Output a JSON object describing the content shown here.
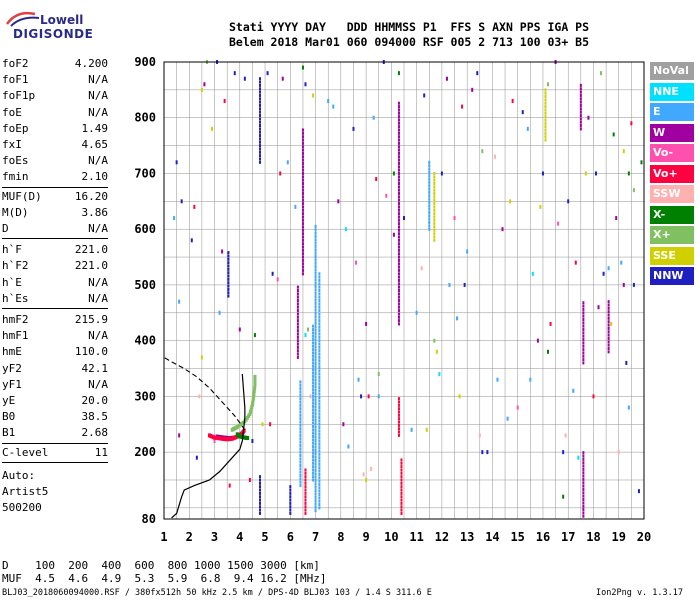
{
  "logo": {
    "line1": "Lowell",
    "line2": "DIGISONDE"
  },
  "header": {
    "line1": "Stati YYYY DAY   DDD HHMMSS P1  FFS S AXN PPS IGA PS",
    "line2": "Belem 2018 Mar01 060 094000 RSF 005 2 713 100 03+ B5"
  },
  "params_group1": [
    {
      "label": "foF2",
      "value": "4.200"
    },
    {
      "label": "foF1",
      "value": "N/A"
    },
    {
      "label": "foF1p",
      "value": "N/A"
    },
    {
      "label": "foE",
      "value": "N/A"
    },
    {
      "label": "foEp",
      "value": "1.49"
    },
    {
      "label": "fxI",
      "value": "4.65"
    },
    {
      "label": "foEs",
      "value": "N/A"
    },
    {
      "label": "fmin",
      "value": "2.10"
    }
  ],
  "params_group2": [
    {
      "label": "MUF(D)",
      "value": "16.20"
    },
    {
      "label": "M(D)",
      "value": "3.86"
    },
    {
      "label": "D",
      "value": "N/A"
    }
  ],
  "params_group3": [
    {
      "label": "h`F",
      "value": "221.0"
    },
    {
      "label": "h`F2",
      "value": "221.0"
    },
    {
      "label": "h`E",
      "value": "N/A"
    },
    {
      "label": "h`Es",
      "value": "N/A"
    }
  ],
  "params_group4": [
    {
      "label": "hmF2",
      "value": "215.9"
    },
    {
      "label": "hmF1",
      "value": "N/A"
    },
    {
      "label": "hmE",
      "value": "110.0"
    },
    {
      "label": "yF2",
      "value": "42.1"
    },
    {
      "label": "yF1",
      "value": "N/A"
    },
    {
      "label": "yE",
      "value": "20.0"
    },
    {
      "label": "B0",
      "value": "38.5"
    },
    {
      "label": "B1",
      "value": "2.68"
    }
  ],
  "c_level": {
    "label": "C-level",
    "value": "11"
  },
  "auto": {
    "line1": "Auto:",
    "line2": "Artist5",
    "line3": "500200"
  },
  "legend": [
    {
      "label": "NoVal",
      "bg": "#a0a0a0",
      "fg": "#ffffff"
    },
    {
      "label": "NNE",
      "bg": "#00e0ff",
      "fg": "#ffffff"
    },
    {
      "label": "E",
      "bg": "#40a8ff",
      "fg": "#ffffff"
    },
    {
      "label": "W",
      "bg": "#a000a0",
      "fg": "#ffffff"
    },
    {
      "label": "Vo-",
      "bg": "#ff50b0",
      "fg": "#ffffff"
    },
    {
      "label": "Vo+",
      "bg": "#ff0040",
      "fg": "#ffffff"
    },
    {
      "label": "SSW",
      "bg": "#ffb0b0",
      "fg": "#ffffff"
    },
    {
      "label": "X-",
      "bg": "#008000",
      "fg": "#ffffff"
    },
    {
      "label": "X+",
      "bg": "#80c060",
      "fg": "#ffffff"
    },
    {
      "label": "SSE",
      "bg": "#d0d000",
      "fg": "#ffffff"
    },
    {
      "label": "NNW",
      "bg": "#2020c0",
      "fg": "#ffffff"
    }
  ],
  "bottom": {
    "d_row": "D    100  200  400  600  800 1000 1500 3000 [km]",
    "muf_row": "MUF  4.5  4.6  4.9  5.3  5.9  6.8  9.4 16.2 [MHz]"
  },
  "footer": {
    "left": "BLJ03_2018060094000.RSF / 380fx512h 50 kHz 2.5 km / DPS-4D BLJ03 103 / 1.4 S 311.6 E",
    "right": "Ion2Png v. 1.3.17"
  },
  "chart_data": {
    "type": "scatter",
    "xlim": [
      1,
      20
    ],
    "ylim": [
      80,
      900
    ],
    "x_ticks": [
      1,
      2,
      3,
      4,
      5,
      6,
      7,
      8,
      9,
      10,
      11,
      12,
      13,
      14,
      15,
      16,
      17,
      18,
      19,
      20
    ],
    "y_ticks": [
      80,
      200,
      300,
      400,
      500,
      600,
      700,
      800,
      900
    ],
    "grid": true,
    "colors": {
      "profile": "#000000",
      "extrap": "#000000",
      "frame": "#000000",
      "grid": "#909090"
    },
    "profile": [
      [
        1.3,
        82
      ],
      [
        1.5,
        90
      ],
      [
        1.6,
        105
      ],
      [
        1.7,
        120
      ],
      [
        1.8,
        132
      ],
      [
        2.2,
        140
      ],
      [
        2.8,
        150
      ],
      [
        3.2,
        165
      ],
      [
        3.7,
        190
      ],
      [
        4.0,
        205
      ],
      [
        4.1,
        220
      ],
      [
        4.15,
        240
      ],
      [
        4.2,
        262
      ],
      [
        4.2,
        280
      ],
      [
        4.15,
        310
      ],
      [
        4.1,
        340
      ]
    ],
    "extrapolation": [
      [
        4.2,
        240
      ],
      [
        3.8,
        265
      ],
      [
        3.3,
        290
      ],
      [
        2.8,
        315
      ],
      [
        2.3,
        335
      ],
      [
        1.8,
        350
      ],
      [
        1.3,
        362
      ],
      [
        1.0,
        370
      ]
    ],
    "traces": [
      {
        "name": "W",
        "color": "#a000a0",
        "points": [
          [
            3.1,
            228
          ],
          [
            3.4,
            226
          ],
          [
            3.6,
            225
          ],
          [
            3.8,
            226
          ],
          [
            4.0,
            230
          ],
          [
            4.15,
            236
          ]
        ]
      },
      {
        "name": "Vo+",
        "color": "#ff0040",
        "points": [
          [
            2.8,
            230
          ],
          [
            3.0,
            226
          ],
          [
            3.3,
            224
          ],
          [
            3.5,
            223
          ],
          [
            3.7,
            224
          ],
          [
            3.9,
            228
          ],
          [
            4.1,
            234
          ],
          [
            4.2,
            240
          ]
        ]
      },
      {
        "name": "X+",
        "color": "#80c060",
        "points": [
          [
            3.7,
            240
          ],
          [
            3.9,
            245
          ],
          [
            4.2,
            255
          ],
          [
            4.4,
            268
          ],
          [
            4.5,
            285
          ],
          [
            4.55,
            300
          ],
          [
            4.6,
            320
          ],
          [
            4.6,
            340
          ]
        ]
      },
      {
        "name": "X-",
        "color": "#008000",
        "points": [
          [
            3.9,
            232
          ],
          [
            4.0,
            228
          ],
          [
            4.2,
            226
          ],
          [
            4.35,
            225
          ]
        ]
      }
    ],
    "columns": [
      {
        "name": "E",
        "color": "#40a8ff",
        "x": 7.0,
        "y0": 95,
        "y1": 610
      },
      {
        "name": "E",
        "color": "#40a8ff",
        "x": 7.15,
        "y0": 100,
        "y1": 520
      },
      {
        "name": "E",
        "color": "#40a8ff",
        "x": 6.9,
        "y0": 150,
        "y1": 430
      },
      {
        "name": "W",
        "color": "#a000a0",
        "x": 6.5,
        "y0": 520,
        "y1": 780
      },
      {
        "name": "E",
        "color": "#40a8ff",
        "x": 6.4,
        "y0": 140,
        "y1": 330
      },
      {
        "name": "NNW",
        "color": "#2020c0",
        "x": 3.55,
        "y0": 480,
        "y1": 560
      },
      {
        "name": "W",
        "color": "#a000a0",
        "x": 10.3,
        "y0": 430,
        "y1": 830
      },
      {
        "name": "Vo+",
        "color": "#ff0040",
        "x": 10.4,
        "y0": 90,
        "y1": 190
      },
      {
        "name": "Vo+",
        "color": "#ff0040",
        "x": 10.3,
        "y0": 230,
        "y1": 300
      },
      {
        "name": "SSE",
        "color": "#d0d000",
        "x": 11.7,
        "y0": 580,
        "y1": 700
      },
      {
        "name": "E",
        "color": "#40a8ff",
        "x": 11.5,
        "y0": 600,
        "y1": 720
      },
      {
        "name": "W",
        "color": "#a000a0",
        "x": 17.6,
        "y0": 85,
        "y1": 200
      },
      {
        "name": "W",
        "color": "#a000a0",
        "x": 17.6,
        "y0": 360,
        "y1": 470
      },
      {
        "name": "W",
        "color": "#a000a0",
        "x": 17.5,
        "y0": 780,
        "y1": 860
      },
      {
        "name": "SSE",
        "color": "#d0d000",
        "x": 16.1,
        "y0": 760,
        "y1": 850
      },
      {
        "name": "W",
        "color": "#a000a0",
        "x": 18.6,
        "y0": 380,
        "y1": 470
      },
      {
        "name": "NNW",
        "color": "#2020c0",
        "x": 4.8,
        "y0": 720,
        "y1": 870
      },
      {
        "name": "NNW",
        "color": "#2020c0",
        "x": 4.8,
        "y0": 90,
        "y1": 160
      },
      {
        "name": "NNW",
        "color": "#2020c0",
        "x": 6.0,
        "y0": 90,
        "y1": 140
      },
      {
        "name": "W",
        "color": "#a000a0",
        "x": 6.3,
        "y0": 370,
        "y1": 500
      },
      {
        "name": "Vo+",
        "color": "#ff0040",
        "x": 6.6,
        "y0": 90,
        "y1": 170
      }
    ],
    "scatter_points": [
      {
        "color": "#2020c0",
        "pts": [
          [
            1.5,
            720
          ],
          [
            1.7,
            650
          ],
          [
            2.1,
            580
          ],
          [
            3.1,
            900
          ],
          [
            3.8,
            880
          ],
          [
            4.2,
            870
          ],
          [
            5.1,
            880
          ],
          [
            5.3,
            520
          ],
          [
            6.6,
            860
          ],
          [
            8.5,
            780
          ],
          [
            8.8,
            300
          ],
          [
            9.7,
            900
          ],
          [
            12.0,
            700
          ],
          [
            13.4,
            880
          ],
          [
            15.2,
            810
          ],
          [
            16.0,
            700
          ],
          [
            17.0,
            650
          ],
          [
            18.1,
            700
          ],
          [
            18.4,
            520
          ],
          [
            19.3,
            360
          ],
          [
            19.6,
            500
          ],
          [
            19.8,
            130
          ],
          [
            13.6,
            200
          ],
          [
            13.8,
            200
          ],
          [
            16.8,
            200
          ],
          [
            12.9,
            500
          ],
          [
            2.3,
            190
          ],
          [
            4.5,
            220
          ],
          [
            10.5,
            620
          ],
          [
            11.3,
            840
          ]
        ]
      },
      {
        "color": "#40a8ff",
        "pts": [
          [
            1.4,
            620
          ],
          [
            1.6,
            470
          ],
          [
            3.2,
            450
          ],
          [
            5.9,
            720
          ],
          [
            6.2,
            640
          ],
          [
            7.5,
            830
          ],
          [
            7.7,
            820
          ],
          [
            8.3,
            210
          ],
          [
            9.3,
            800
          ],
          [
            10.8,
            240
          ],
          [
            11.0,
            450
          ],
          [
            12.3,
            500
          ],
          [
            13.0,
            560
          ],
          [
            14.2,
            330
          ],
          [
            14.6,
            260
          ],
          [
            15.4,
            780
          ],
          [
            17.2,
            310
          ],
          [
            18.6,
            530
          ],
          [
            19.1,
            540
          ],
          [
            19.4,
            280
          ],
          [
            15.5,
            330
          ],
          [
            9.5,
            300
          ],
          [
            8.7,
            330
          ],
          [
            12.6,
            440
          ]
        ]
      },
      {
        "color": "#a000a0",
        "pts": [
          [
            1.6,
            230
          ],
          [
            2.6,
            860
          ],
          [
            3.3,
            560
          ],
          [
            4.0,
            420
          ],
          [
            5.7,
            870
          ],
          [
            7.9,
            650
          ],
          [
            8.1,
            250
          ],
          [
            9.0,
            430
          ],
          [
            10.1,
            590
          ],
          [
            12.2,
            870
          ],
          [
            13.2,
            850
          ],
          [
            14.4,
            600
          ],
          [
            15.8,
            400
          ],
          [
            16.5,
            900
          ],
          [
            17.8,
            800
          ],
          [
            18.2,
            460
          ],
          [
            18.9,
            620
          ],
          [
            19.2,
            500
          ]
        ]
      },
      {
        "color": "#ff0040",
        "pts": [
          [
            2.2,
            640
          ],
          [
            3.4,
            830
          ],
          [
            5.6,
            700
          ],
          [
            9.1,
            300
          ],
          [
            9.4,
            690
          ],
          [
            12.8,
            820
          ],
          [
            14.8,
            830
          ],
          [
            16.3,
            430
          ],
          [
            17.3,
            540
          ],
          [
            18.0,
            300
          ],
          [
            19.5,
            790
          ],
          [
            3.6,
            140
          ],
          [
            4.4,
            150
          ],
          [
            5.2,
            250
          ]
        ]
      },
      {
        "color": "#ff50b0",
        "pts": [
          [
            3.0,
            220
          ],
          [
            5.5,
            510
          ],
          [
            8.6,
            540
          ],
          [
            9.8,
            660
          ],
          [
            12.5,
            620
          ],
          [
            15.0,
            280
          ],
          [
            16.6,
            610
          ]
        ]
      },
      {
        "color": "#ffb0b0",
        "pts": [
          [
            2.4,
            300
          ],
          [
            6.8,
            300
          ],
          [
            8.9,
            160
          ],
          [
            9.2,
            170
          ],
          [
            11.2,
            530
          ],
          [
            13.5,
            230
          ],
          [
            14.1,
            730
          ],
          [
            16.9,
            230
          ],
          [
            19.0,
            200
          ]
        ]
      },
      {
        "color": "#008000",
        "pts": [
          [
            4.6,
            410
          ],
          [
            6.5,
            890
          ],
          [
            10.3,
            880
          ],
          [
            10.1,
            700
          ],
          [
            16.2,
            380
          ],
          [
            18.8,
            770
          ],
          [
            19.4,
            700
          ],
          [
            19.9,
            720
          ],
          [
            16.8,
            120
          ]
        ]
      },
      {
        "color": "#80c060",
        "pts": [
          [
            2.7,
            900
          ],
          [
            6.7,
            420
          ],
          [
            9.5,
            340
          ],
          [
            11.7,
            400
          ],
          [
            13.6,
            740
          ],
          [
            16.2,
            860
          ],
          [
            18.3,
            880
          ],
          [
            19.6,
            670
          ]
        ]
      },
      {
        "color": "#d0d000",
        "pts": [
          [
            2.5,
            850
          ],
          [
            2.9,
            780
          ],
          [
            4.9,
            250
          ],
          [
            6.9,
            840
          ],
          [
            9.0,
            150
          ],
          [
            11.4,
            240
          ],
          [
            11.8,
            380
          ],
          [
            12.7,
            300
          ],
          [
            14.7,
            650
          ],
          [
            15.9,
            640
          ],
          [
            17.7,
            700
          ],
          [
            18.7,
            430
          ],
          [
            19.2,
            740
          ],
          [
            2.5,
            370
          ]
        ]
      },
      {
        "color": "#00e0ff",
        "pts": [
          [
            6.6,
            410
          ],
          [
            8.2,
            600
          ],
          [
            11.9,
            340
          ],
          [
            15.6,
            520
          ],
          [
            17.4,
            190
          ]
        ]
      }
    ]
  }
}
